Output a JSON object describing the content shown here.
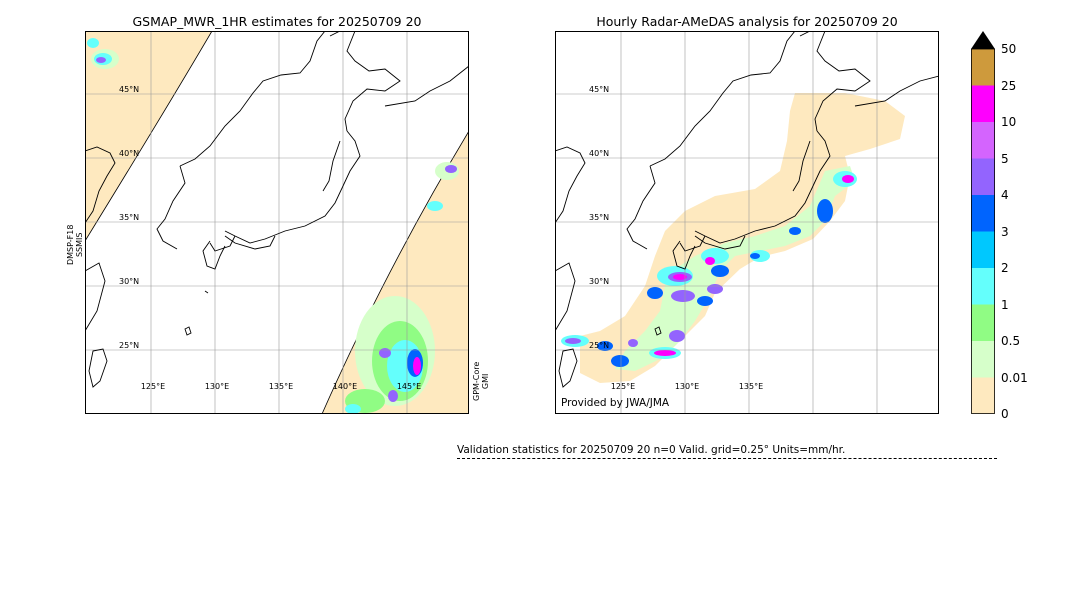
{
  "left_panel": {
    "title": "GSMAP_MWR_1HR estimates for 20250709 20",
    "satellite_left": [
      "DMSP-F18",
      "SSMIS"
    ],
    "satellite_right": [
      "GPM-Core",
      "GMI"
    ],
    "lat_labels": [
      "45°N",
      "40°N",
      "35°N",
      "30°N",
      "25°N"
    ],
    "lon_labels": [
      "125°E",
      "130°E",
      "135°E",
      "140°E",
      "145°E"
    ]
  },
  "right_panel": {
    "title": "Hourly Radar-AMeDAS analysis for 20250709 20",
    "credit": "Provided by JWA/JMA",
    "lat_labels": [
      "45°N",
      "40°N",
      "35°N",
      "30°N",
      "25°N"
    ],
    "lon_labels": [
      "125°E",
      "130°E",
      "135°E"
    ]
  },
  "colorbar": {
    "ticks": [
      "0",
      "0.01",
      "0.5",
      "1",
      "2",
      "3",
      "4",
      "5",
      "10",
      "25",
      "50"
    ],
    "colors": [
      "#fee9bf",
      "#d6ffca",
      "#90fc84",
      "#64fffc",
      "#00c8fe",
      "#0064fe",
      "#9364fe",
      "#d464fe",
      "#fe00fe",
      "#ce9a3c"
    ],
    "extend_color": "#000000"
  },
  "validation": {
    "text": "Validation statistics for 20250709 20  n=0 Valid. grid=0.25° Units=mm/hr."
  }
}
